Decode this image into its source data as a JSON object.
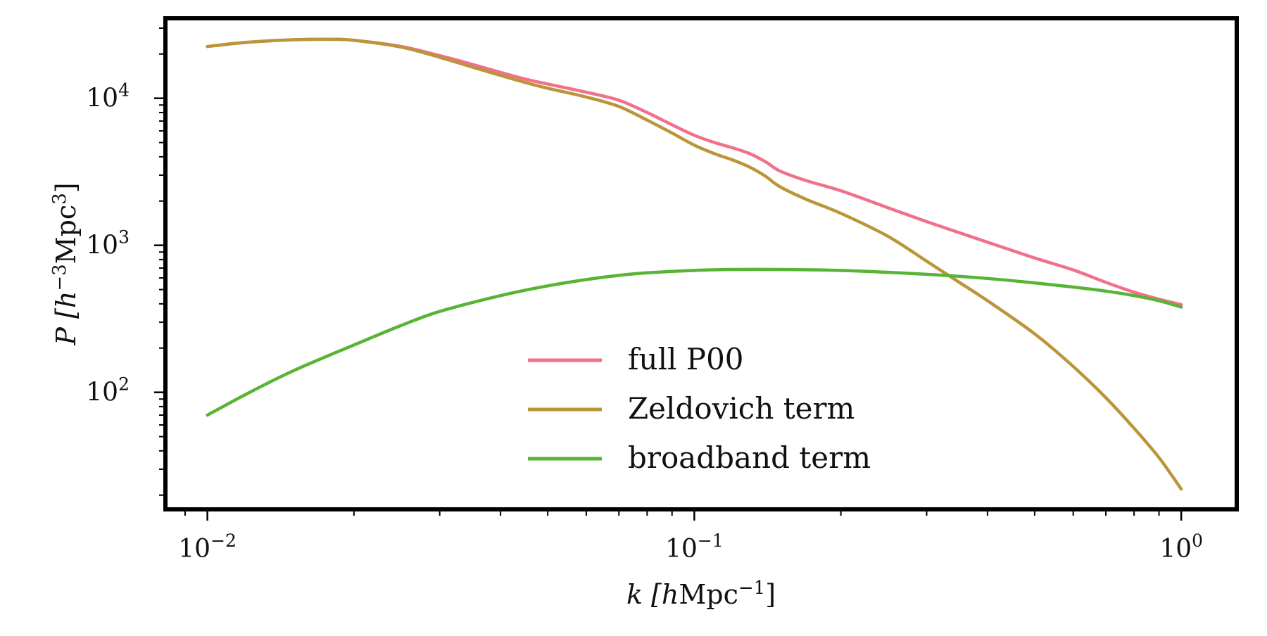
{
  "chart_data": {
    "type": "line",
    "xscale": "log",
    "yscale": "log",
    "xlim": [
      0.0082,
      1.3
    ],
    "ylim": [
      16,
      35000
    ],
    "xlabel": {
      "base": "k [",
      "italic": "h",
      "mid": "Mpc",
      "sup": "−1",
      "end": "]"
    },
    "ylabel": {
      "base": "P [",
      "italic": "h",
      "sup1": "−3",
      "mid": "Mpc",
      "sup2": "3",
      "end": "]"
    },
    "xticks": [
      {
        "value": 0.01,
        "base": "10",
        "exp": "−2"
      },
      {
        "value": 0.1,
        "base": "10",
        "exp": "−1"
      },
      {
        "value": 1,
        "base": "10",
        "exp": "0"
      }
    ],
    "yticks": [
      {
        "value": 100,
        "base": "10",
        "exp": "2"
      },
      {
        "value": 1000,
        "base": "10",
        "exp": "3"
      },
      {
        "value": 10000,
        "base": "10",
        "exp": "4"
      }
    ],
    "grid": false,
    "legend_position": "lower center",
    "series": [
      {
        "name": "full P00",
        "color": "#f0718a",
        "points": [
          [
            0.01,
            22500
          ],
          [
            0.012,
            24000
          ],
          [
            0.015,
            25000
          ],
          [
            0.018,
            25200
          ],
          [
            0.02,
            24800
          ],
          [
            0.025,
            22500
          ],
          [
            0.03,
            19500
          ],
          [
            0.035,
            17000
          ],
          [
            0.04,
            15000
          ],
          [
            0.045,
            13500
          ],
          [
            0.05,
            12500
          ],
          [
            0.06,
            11000
          ],
          [
            0.07,
            9700
          ],
          [
            0.08,
            8000
          ],
          [
            0.09,
            6600
          ],
          [
            0.1,
            5600
          ],
          [
            0.11,
            5000
          ],
          [
            0.12,
            4600
          ],
          [
            0.13,
            4200
          ],
          [
            0.14,
            3700
          ],
          [
            0.15,
            3200
          ],
          [
            0.17,
            2750
          ],
          [
            0.2,
            2350
          ],
          [
            0.25,
            1800
          ],
          [
            0.3,
            1450
          ],
          [
            0.4,
            1050
          ],
          [
            0.5,
            820
          ],
          [
            0.6,
            680
          ],
          [
            0.7,
            560
          ],
          [
            0.8,
            480
          ],
          [
            0.9,
            430
          ],
          [
            1.0,
            395
          ]
        ]
      },
      {
        "name": "Zeldovich term",
        "color": "#bb9539",
        "points": [
          [
            0.01,
            22500
          ],
          [
            0.012,
            24000
          ],
          [
            0.015,
            25000
          ],
          [
            0.018,
            25200
          ],
          [
            0.02,
            24800
          ],
          [
            0.025,
            22300
          ],
          [
            0.03,
            19000
          ],
          [
            0.035,
            16300
          ],
          [
            0.04,
            14300
          ],
          [
            0.045,
            12800
          ],
          [
            0.05,
            11700
          ],
          [
            0.06,
            10200
          ],
          [
            0.07,
            8800
          ],
          [
            0.08,
            7100
          ],
          [
            0.09,
            5800
          ],
          [
            0.1,
            4800
          ],
          [
            0.11,
            4200
          ],
          [
            0.12,
            3800
          ],
          [
            0.13,
            3400
          ],
          [
            0.14,
            2950
          ],
          [
            0.15,
            2500
          ],
          [
            0.17,
            2050
          ],
          [
            0.2,
            1650
          ],
          [
            0.25,
            1150
          ],
          [
            0.3,
            780
          ],
          [
            0.35,
            560
          ],
          [
            0.4,
            420
          ],
          [
            0.5,
            250
          ],
          [
            0.6,
            150
          ],
          [
            0.7,
            92
          ],
          [
            0.8,
            57
          ],
          [
            0.9,
            36
          ],
          [
            1.0,
            22
          ]
        ]
      },
      {
        "name": "broadband term",
        "color": "#57b435",
        "points": [
          [
            0.01,
            70
          ],
          [
            0.012,
            97
          ],
          [
            0.015,
            140
          ],
          [
            0.02,
            210
          ],
          [
            0.025,
            285
          ],
          [
            0.03,
            355
          ],
          [
            0.04,
            455
          ],
          [
            0.05,
            530
          ],
          [
            0.06,
            585
          ],
          [
            0.07,
            625
          ],
          [
            0.08,
            650
          ],
          [
            0.1,
            675
          ],
          [
            0.12,
            685
          ],
          [
            0.15,
            685
          ],
          [
            0.2,
            675
          ],
          [
            0.3,
            635
          ],
          [
            0.4,
            595
          ],
          [
            0.5,
            555
          ],
          [
            0.6,
            520
          ],
          [
            0.7,
            488
          ],
          [
            0.8,
            455
          ],
          [
            0.9,
            420
          ],
          [
            1.0,
            380
          ]
        ]
      }
    ]
  }
}
